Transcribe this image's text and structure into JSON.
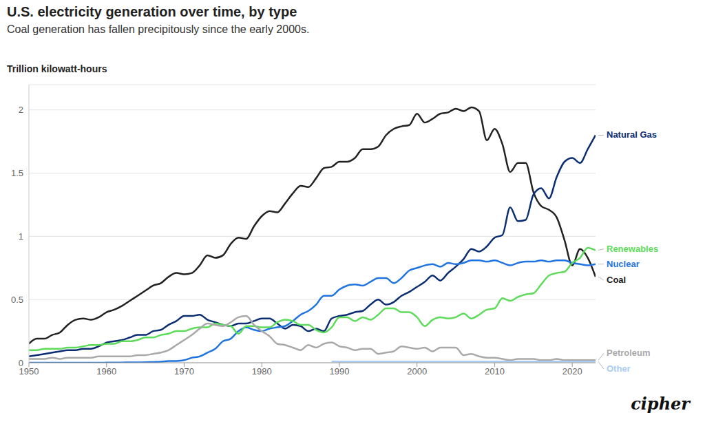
{
  "chart_data": {
    "type": "line",
    "title": "U.S. electricity generation over time, by type",
    "subtitle": "Coal generation has fallen precipitously since the early 2000s.",
    "y_label": "Trillion kilowatt-hours",
    "source": "cipher",
    "x": [
      1950,
      1951,
      1952,
      1953,
      1954,
      1955,
      1956,
      1957,
      1958,
      1959,
      1960,
      1961,
      1962,
      1963,
      1964,
      1965,
      1966,
      1967,
      1968,
      1969,
      1970,
      1971,
      1972,
      1973,
      1974,
      1975,
      1976,
      1977,
      1978,
      1979,
      1980,
      1981,
      1982,
      1983,
      1984,
      1985,
      1986,
      1987,
      1988,
      1989,
      1990,
      1991,
      1992,
      1993,
      1994,
      1995,
      1996,
      1997,
      1998,
      1999,
      2000,
      2001,
      2002,
      2003,
      2004,
      2005,
      2006,
      2007,
      2008,
      2009,
      2010,
      2011,
      2012,
      2013,
      2014,
      2015,
      2016,
      2017,
      2018,
      2019,
      2020,
      2021,
      2022,
      2023
    ],
    "xlim": [
      1950,
      2023
    ],
    "xticks": [
      1950,
      1960,
      1970,
      1980,
      1990,
      2000,
      2010,
      2020
    ],
    "ylim": [
      0,
      2.2
    ],
    "yticks": [
      0,
      0.5,
      1,
      1.5,
      2
    ],
    "grid": true,
    "series": [
      {
        "name": "Coal",
        "color": "#222222",
        "values": [
          0.15,
          0.19,
          0.19,
          0.22,
          0.24,
          0.3,
          0.34,
          0.35,
          0.34,
          0.36,
          0.4,
          0.42,
          0.45,
          0.49,
          0.53,
          0.57,
          0.61,
          0.63,
          0.68,
          0.71,
          0.7,
          0.71,
          0.77,
          0.85,
          0.83,
          0.85,
          0.94,
          0.99,
          0.98,
          1.08,
          1.16,
          1.2,
          1.19,
          1.26,
          1.34,
          1.4,
          1.39,
          1.46,
          1.54,
          1.55,
          1.59,
          1.59,
          1.62,
          1.69,
          1.69,
          1.71,
          1.8,
          1.85,
          1.87,
          1.88,
          1.97,
          1.9,
          1.93,
          1.97,
          1.98,
          2.01,
          1.99,
          2.02,
          1.99,
          1.76,
          1.85,
          1.73,
          1.51,
          1.58,
          1.58,
          1.35,
          1.24,
          1.21,
          1.15,
          0.97,
          0.77,
          0.9,
          0.83,
          0.68
        ]
      },
      {
        "name": "Natural Gas",
        "color": "#0b2d72",
        "values": [
          0.05,
          0.06,
          0.07,
          0.08,
          0.09,
          0.1,
          0.1,
          0.11,
          0.11,
          0.13,
          0.16,
          0.17,
          0.18,
          0.2,
          0.22,
          0.22,
          0.25,
          0.26,
          0.3,
          0.33,
          0.37,
          0.37,
          0.38,
          0.34,
          0.32,
          0.3,
          0.29,
          0.31,
          0.31,
          0.33,
          0.35,
          0.35,
          0.31,
          0.27,
          0.3,
          0.29,
          0.25,
          0.27,
          0.25,
          0.35,
          0.37,
          0.38,
          0.4,
          0.41,
          0.46,
          0.5,
          0.46,
          0.48,
          0.53,
          0.56,
          0.6,
          0.64,
          0.69,
          0.65,
          0.71,
          0.76,
          0.82,
          0.9,
          0.88,
          0.92,
          0.99,
          1.01,
          1.23,
          1.12,
          1.13,
          1.33,
          1.38,
          1.3,
          1.47,
          1.59,
          1.62,
          1.58,
          1.69,
          1.8
        ]
      },
      {
        "name": "Nuclear",
        "color": "#1f74e0",
        "values": [
          0,
          0,
          0,
          0,
          0,
          0,
          0,
          0,
          0,
          0,
          0.001,
          0.002,
          0.002,
          0.003,
          0.003,
          0.004,
          0.006,
          0.008,
          0.013,
          0.014,
          0.02,
          0.04,
          0.05,
          0.08,
          0.11,
          0.17,
          0.19,
          0.25,
          0.28,
          0.26,
          0.25,
          0.27,
          0.28,
          0.29,
          0.33,
          0.38,
          0.41,
          0.46,
          0.53,
          0.53,
          0.58,
          0.61,
          0.62,
          0.61,
          0.64,
          0.67,
          0.67,
          0.63,
          0.67,
          0.73,
          0.75,
          0.77,
          0.78,
          0.76,
          0.79,
          0.78,
          0.79,
          0.81,
          0.81,
          0.8,
          0.81,
          0.79,
          0.77,
          0.79,
          0.8,
          0.8,
          0.81,
          0.8,
          0.81,
          0.81,
          0.79,
          0.78,
          0.77,
          0.78
        ]
      },
      {
        "name": "Renewables",
        "color": "#5ddc5a",
        "values": [
          0.1,
          0.1,
          0.11,
          0.11,
          0.11,
          0.12,
          0.12,
          0.13,
          0.14,
          0.14,
          0.15,
          0.15,
          0.17,
          0.17,
          0.18,
          0.2,
          0.2,
          0.22,
          0.23,
          0.25,
          0.25,
          0.27,
          0.28,
          0.28,
          0.31,
          0.3,
          0.29,
          0.23,
          0.29,
          0.29,
          0.28,
          0.28,
          0.32,
          0.34,
          0.33,
          0.3,
          0.3,
          0.26,
          0.24,
          0.28,
          0.36,
          0.36,
          0.33,
          0.36,
          0.34,
          0.38,
          0.43,
          0.43,
          0.4,
          0.4,
          0.36,
          0.29,
          0.34,
          0.36,
          0.35,
          0.36,
          0.39,
          0.35,
          0.38,
          0.42,
          0.43,
          0.51,
          0.49,
          0.52,
          0.54,
          0.55,
          0.62,
          0.69,
          0.71,
          0.72,
          0.79,
          0.83,
          0.91,
          0.89
        ]
      },
      {
        "name": "Petroleum",
        "color": "#a9a9a9",
        "values": [
          0.03,
          0.03,
          0.03,
          0.04,
          0.03,
          0.04,
          0.04,
          0.04,
          0.04,
          0.05,
          0.05,
          0.05,
          0.05,
          0.05,
          0.06,
          0.06,
          0.07,
          0.08,
          0.1,
          0.14,
          0.18,
          0.22,
          0.27,
          0.31,
          0.3,
          0.29,
          0.32,
          0.36,
          0.37,
          0.3,
          0.25,
          0.21,
          0.15,
          0.14,
          0.12,
          0.1,
          0.14,
          0.12,
          0.15,
          0.16,
          0.13,
          0.12,
          0.1,
          0.11,
          0.11,
          0.07,
          0.08,
          0.09,
          0.13,
          0.12,
          0.11,
          0.12,
          0.09,
          0.12,
          0.12,
          0.12,
          0.06,
          0.07,
          0.05,
          0.04,
          0.04,
          0.03,
          0.02,
          0.03,
          0.03,
          0.03,
          0.02,
          0.02,
          0.03,
          0.02,
          0.02,
          0.02,
          0.02,
          0.02
        ]
      },
      {
        "name": "Other",
        "color": "#a9ccf4",
        "values": [
          null,
          null,
          null,
          null,
          null,
          null,
          null,
          null,
          null,
          null,
          null,
          null,
          null,
          null,
          null,
          null,
          null,
          null,
          null,
          null,
          null,
          null,
          null,
          null,
          null,
          null,
          null,
          null,
          null,
          null,
          null,
          null,
          null,
          null,
          null,
          null,
          null,
          null,
          null,
          0.01,
          0.01,
          0.01,
          0.01,
          0.01,
          0.01,
          0.01,
          0.01,
          0.01,
          0.01,
          0.01,
          0.01,
          0.01,
          0.01,
          0.01,
          0.01,
          0.01,
          0.01,
          0.01,
          0.01,
          0.01,
          0.01,
          0.01,
          0.01,
          0.01,
          0.01,
          0.01,
          0.01,
          0.01,
          0.01,
          0.01,
          0.01,
          0.01,
          0.01,
          0.01
        ]
      }
    ]
  }
}
